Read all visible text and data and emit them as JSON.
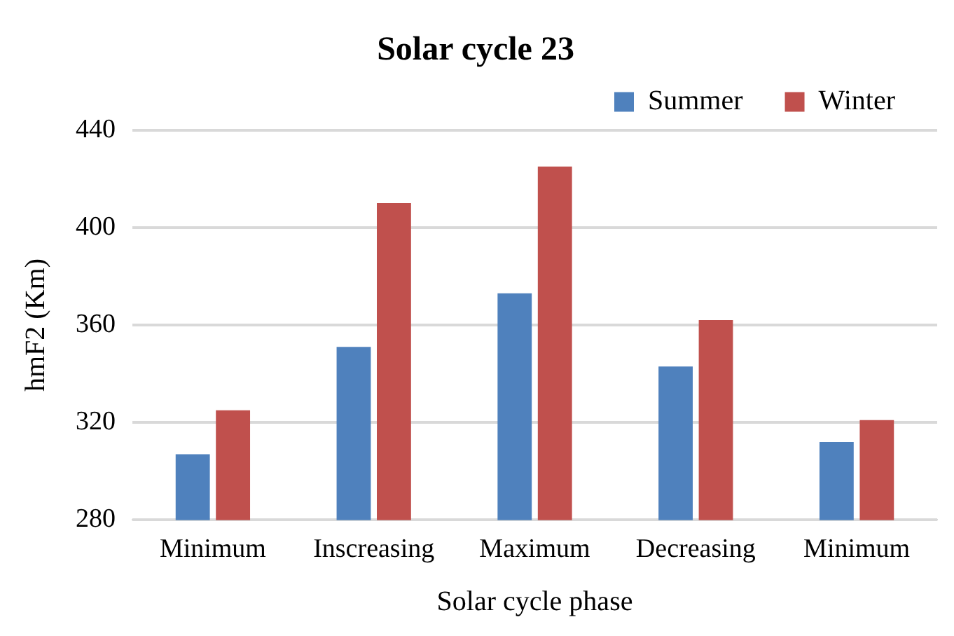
{
  "chart_data": {
    "type": "bar",
    "title": "Solar cycle 23",
    "xlabel": "Solar cycle phase",
    "ylabel": "hmF2 (Km)",
    "categories": [
      "Minimum",
      "Inscreasing",
      "Maximum",
      "Decreasing",
      "Minimum"
    ],
    "series": [
      {
        "name": "Summer",
        "color": "#4f81bd",
        "values": [
          307,
          351,
          373,
          343,
          312
        ]
      },
      {
        "name": "Winter",
        "color": "#c0504d",
        "values": [
          325,
          410,
          425,
          362,
          321
        ]
      }
    ],
    "ylim": [
      280,
      440
    ],
    "yticks": [
      280,
      320,
      360,
      400,
      440
    ],
    "grid": "y",
    "legend": "top right"
  }
}
